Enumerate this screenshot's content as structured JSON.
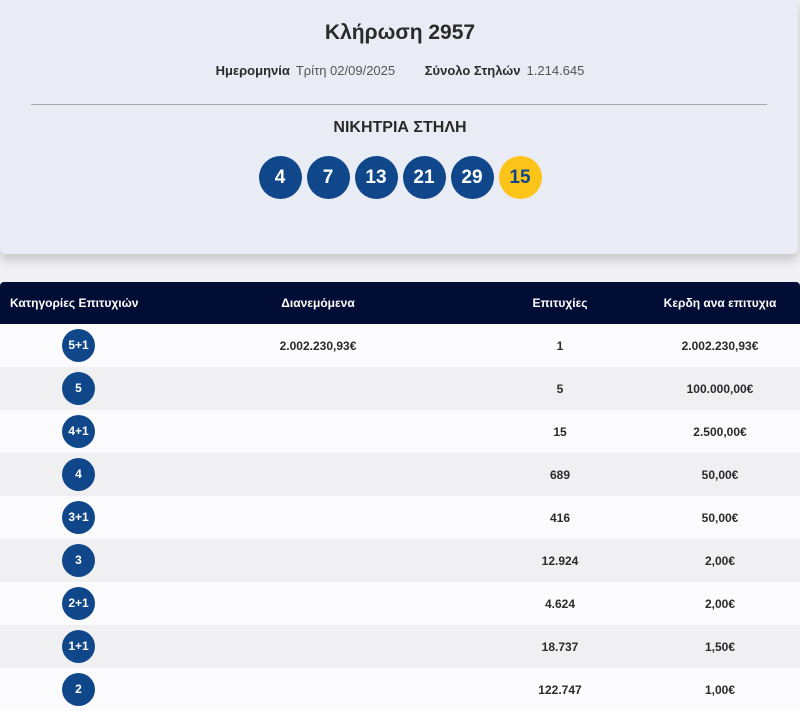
{
  "draw": {
    "title": "Κλήρωση 2957",
    "date_label": "Ημερομηνία",
    "date_value": "Τρίτη 02/09/2025",
    "columns_label": "Σύνολο Στηλών",
    "columns_value": "1.214.645",
    "winning_title": "ΝΙΚΗΤΡΙΑ ΣΤΗΛΗ",
    "numbers": [
      "4",
      "7",
      "13",
      "21",
      "29"
    ],
    "joker": "15"
  },
  "colors": {
    "ball": "#10478b",
    "joker": "#fcc419",
    "header": "#020d36"
  },
  "table": {
    "headers": {
      "category": "Κατηγορίες Επιτυχιών",
      "distributed": "Διανεμόμενα",
      "winners": "Επιτυχίες",
      "prize": "Κερδη ανα επιτυχια"
    },
    "rows": [
      {
        "category": "5+1",
        "distributed": "2.002.230,93€",
        "winners": "1",
        "prize": "2.002.230,93€"
      },
      {
        "category": "5",
        "distributed": "",
        "winners": "5",
        "prize": "100.000,00€"
      },
      {
        "category": "4+1",
        "distributed": "",
        "winners": "15",
        "prize": "2.500,00€"
      },
      {
        "category": "4",
        "distributed": "",
        "winners": "689",
        "prize": "50,00€"
      },
      {
        "category": "3+1",
        "distributed": "",
        "winners": "416",
        "prize": "50,00€"
      },
      {
        "category": "3",
        "distributed": "",
        "winners": "12.924",
        "prize": "2,00€"
      },
      {
        "category": "2+1",
        "distributed": "",
        "winners": "4.624",
        "prize": "2,00€"
      },
      {
        "category": "1+1",
        "distributed": "",
        "winners": "18.737",
        "prize": "1,50€"
      },
      {
        "category": "2",
        "distributed": "",
        "winners": "122.747",
        "prize": "1,00€"
      }
    ]
  }
}
